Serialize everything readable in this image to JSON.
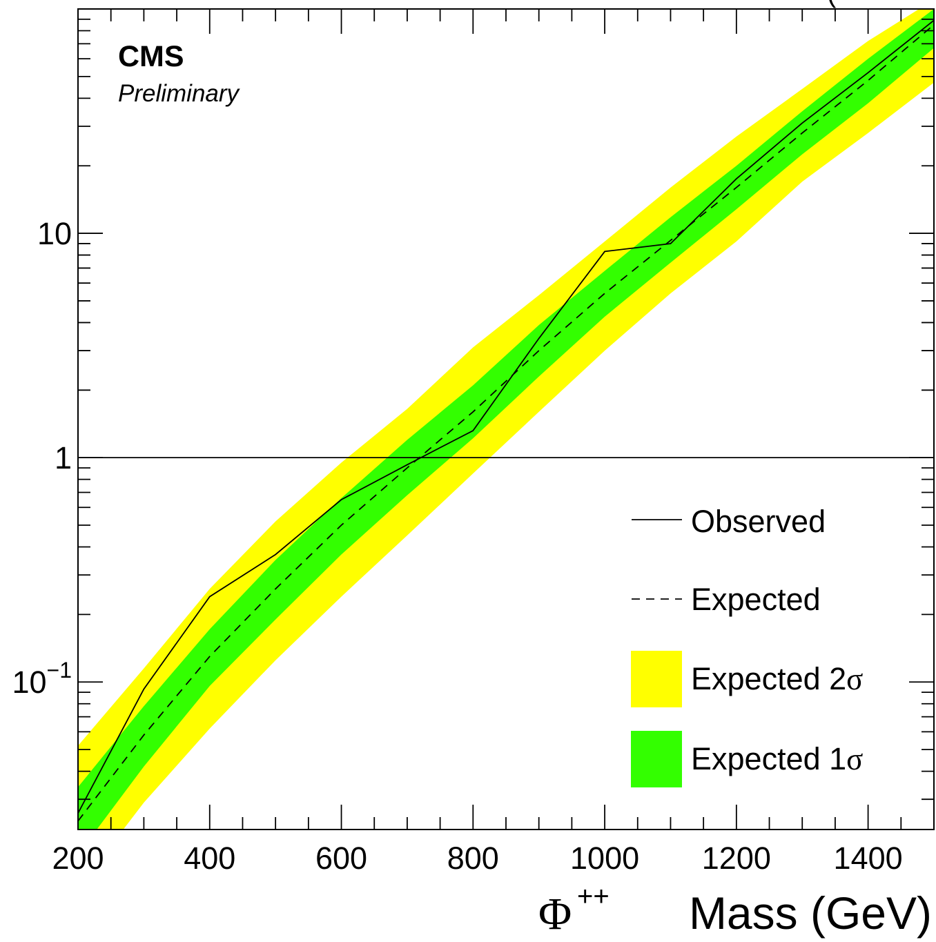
{
  "chart_data": {
    "type": "line",
    "experiment": "CMS",
    "status": "Preliminary",
    "corner_text": "(",
    "xlabel_symbol": "Φ",
    "xlabel_superscript": "++",
    "xlabel_text": "Mass (GeV)",
    "ylabel": "",
    "xlim": [
      200,
      1500
    ],
    "ylim": [
      0.022,
      100
    ],
    "yscale": "log",
    "x_ticks": [
      200,
      400,
      600,
      800,
      1000,
      1200,
      1400
    ],
    "y_ticks": [
      {
        "value": 10,
        "base": "10",
        "exp": ""
      },
      {
        "value": 1,
        "base": "1",
        "exp": ""
      },
      {
        "value": 0.1,
        "base": "10",
        "exp": "−1"
      }
    ],
    "reference_line": 1,
    "x": [
      200,
      300,
      400,
      500,
      600,
      700,
      800,
      900,
      1000,
      1100,
      1200,
      1300,
      1400,
      1500
    ],
    "series": [
      {
        "name": "Observed",
        "style": "solid",
        "color": "#000000",
        "x": [
          200,
          300,
          400,
          500,
          600,
          700,
          800,
          900,
          1000,
          1100,
          1200,
          1300,
          1400,
          1500
        ],
        "values": [
          0.026,
          0.093,
          0.24,
          0.37,
          0.65,
          0.93,
          1.32,
          3.4,
          8.3,
          9.0,
          17.5,
          31,
          52,
          89
        ]
      },
      {
        "name": "Expected",
        "style": "dashed",
        "color": "#000000",
        "x": [
          200,
          300,
          400,
          500,
          600,
          700,
          800,
          900,
          1000,
          1100,
          1200,
          1300,
          1400,
          1500
        ],
        "values": [
          0.024,
          0.058,
          0.13,
          0.26,
          0.5,
          0.9,
          1.6,
          3.0,
          5.4,
          9.3,
          16,
          28,
          48,
          85
        ]
      }
    ],
    "bands": [
      {
        "name": "Expected 2σ",
        "color": "#ffff00",
        "lower": [
          0.012,
          0.029,
          0.062,
          0.125,
          0.24,
          0.45,
          0.85,
          1.6,
          3.0,
          5.4,
          9.2,
          17,
          28,
          47
        ],
        "upper": [
          0.052,
          0.115,
          0.26,
          0.52,
          0.95,
          1.65,
          3.1,
          5.3,
          9.2,
          16,
          27,
          44,
          72,
          110
        ]
      },
      {
        "name": "Expected 1σ",
        "color": "#33ff00",
        "lower": [
          0.017,
          0.042,
          0.096,
          0.19,
          0.37,
          0.68,
          1.22,
          2.3,
          4.25,
          7.4,
          12.8,
          22.5,
          38,
          67
        ],
        "upper": [
          0.034,
          0.078,
          0.172,
          0.35,
          0.66,
          1.2,
          2.1,
          3.9,
          6.8,
          11.8,
          20,
          35,
          60,
          100
        ]
      }
    ],
    "legend": {
      "placement": "bottom-right",
      "entries": [
        {
          "label": "Observed",
          "kind": "line-solid"
        },
        {
          "label": "Expected",
          "kind": "line-dashed"
        },
        {
          "label_text": "Expected 2",
          "label_symbol": "σ",
          "kind": "box",
          "color": "#ffff00"
        },
        {
          "label_text": "Expected 1",
          "label_symbol": "σ",
          "kind": "box",
          "color": "#33ff00"
        }
      ]
    }
  }
}
